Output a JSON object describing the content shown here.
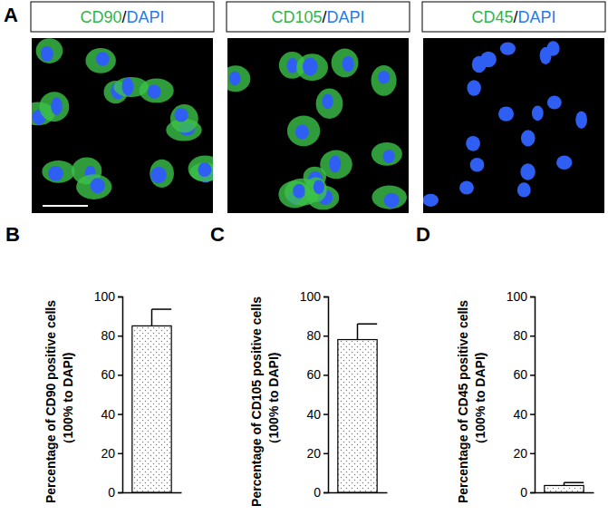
{
  "panel_a": {
    "letter": "A",
    "images": [
      {
        "label_parts": [
          "CD90",
          "/",
          "DAPI"
        ]
      },
      {
        "label_parts": [
          "CD105",
          "/",
          "DAPI"
        ]
      },
      {
        "label_parts": [
          "CD45",
          "/",
          "DAPI"
        ]
      }
    ]
  },
  "chart_data": [
    {
      "type": "bar",
      "title": "B",
      "y_label": [
        "Percentage of CD90 positive cells",
        "（100% to DAPI)"
      ],
      "categories": [
        null
      ],
      "values": [
        85
      ],
      "errors": [
        8.5
      ],
      "ylim": [
        0,
        100
      ],
      "yticks": [
        0,
        20,
        40,
        60,
        80,
        100
      ]
    },
    {
      "type": "bar",
      "title": "C",
      "y_label": [
        "Percentage of CD105 positive cells",
        "（100% to DAPI)"
      ],
      "categories": [
        null
      ],
      "values": [
        78
      ],
      "errors": [
        8
      ],
      "ylim": [
        0,
        100
      ],
      "yticks": [
        0,
        20,
        40,
        60,
        80,
        100
      ]
    },
    {
      "type": "bar",
      "title": "D",
      "y_label": [
        "Percentage of CD45 positive cells",
        "（100% to DAPI)"
      ],
      "categories": [
        null
      ],
      "values": [
        3.5
      ],
      "errors": [
        1.5
      ],
      "ylim": [
        0,
        100
      ],
      "yticks": [
        0,
        20,
        40,
        60,
        80,
        100
      ]
    }
  ]
}
